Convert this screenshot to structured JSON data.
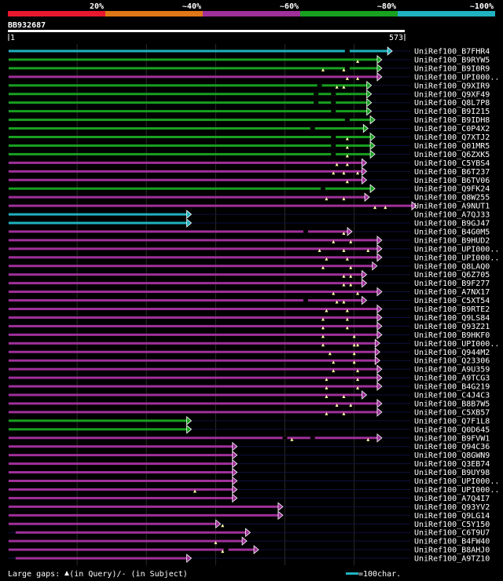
{
  "chart_data": {
    "type": "alignment-overview",
    "query": {
      "name": "BB932687",
      "start": 1,
      "end": 573
    },
    "identity_scale": [
      {
        "label": "20%",
        "color": "#e8182e"
      },
      {
        "label": "~40%",
        "color": "#e07818"
      },
      {
        "label": "~60%",
        "color": "#a0309a"
      },
      {
        "label": "~80%",
        "color": "#18a020"
      },
      {
        "label": "~100%",
        "color": "#20b2c0"
      }
    ],
    "hits": [
      {
        "name": "UniRef100_B7FHR4",
        "end": 555,
        "color": "#20b2c0",
        "query_gaps": [],
        "subject_gaps": [
          490
        ]
      },
      {
        "name": "UniRef100_B9RYW5",
        "end": 540,
        "color": "#18a020",
        "query_gaps": [
          505
        ],
        "subject_gaps": []
      },
      {
        "name": "UniRef100_B9I0R9",
        "end": 540,
        "color": "#18a020",
        "query_gaps": [
          455,
          485
        ],
        "subject_gaps": [
          490
        ]
      },
      {
        "name": "UniRef100_UPI000..",
        "end": 540,
        "color": "#a0309a",
        "query_gaps": [
          490,
          505
        ],
        "subject_gaps": []
      },
      {
        "name": "UniRef100_Q9XIR9",
        "end": 525,
        "color": "#18a020",
        "query_gaps": [
          475,
          485
        ],
        "subject_gaps": [
          450
        ]
      },
      {
        "name": "UniRef100_Q9XF49",
        "end": 525,
        "color": "#18a020",
        "query_gaps": [],
        "subject_gaps": [
          445,
          470
        ]
      },
      {
        "name": "UniRef100_Q8L7P8",
        "end": 525,
        "color": "#18a020",
        "query_gaps": [],
        "subject_gaps": [
          445,
          470
        ]
      },
      {
        "name": "UniRef100_B9I215",
        "end": 525,
        "color": "#18a020",
        "query_gaps": [],
        "subject_gaps": [
          470
        ]
      },
      {
        "name": "UniRef100_B9IDH8",
        "end": 530,
        "color": "#18a020",
        "query_gaps": [],
        "subject_gaps": [
          490
        ]
      },
      {
        "name": "UniRef100_C0P4X2",
        "end": 520,
        "color": "#18a020",
        "query_gaps": [],
        "subject_gaps": [
          440
        ]
      },
      {
        "name": "UniRef100_Q7XTJ2",
        "end": 530,
        "color": "#18a020",
        "query_gaps": [
          490
        ],
        "subject_gaps": [
          470
        ]
      },
      {
        "name": "UniRef100_Q01MR5",
        "end": 530,
        "color": "#18a020",
        "query_gaps": [
          490
        ],
        "subject_gaps": [
          470
        ]
      },
      {
        "name": "UniRef100_Q6ZXK5",
        "end": 530,
        "color": "#18a020",
        "query_gaps": [
          490
        ],
        "subject_gaps": [
          470
        ]
      },
      {
        "name": "UniRef100_C5YBS4",
        "end": 518,
        "color": "#a0309a",
        "query_gaps": [
          475,
          490
        ],
        "subject_gaps": []
      },
      {
        "name": "UniRef100_B6T237",
        "end": 518,
        "color": "#a0309a",
        "query_gaps": [
          470,
          485,
          505
        ],
        "subject_gaps": []
      },
      {
        "name": "UniRef100_B6TV06",
        "end": 518,
        "color": "#a0309a",
        "query_gaps": [
          490
        ],
        "subject_gaps": []
      },
      {
        "name": "UniRef100_Q9FK24",
        "end": 530,
        "color": "#18a020",
        "query_gaps": [],
        "subject_gaps": [
          455
        ]
      },
      {
        "name": "UniRef100_Q8W255",
        "end": 522,
        "color": "#a0309a",
        "query_gaps": [
          460,
          485
        ],
        "subject_gaps": []
      },
      {
        "name": "UniRef100_A9NUT1",
        "end": 590,
        "color": "#a0309a",
        "query_gaps": [
          530,
          545
        ],
        "subject_gaps": []
      },
      {
        "name": "UniRef100_A7QJ33",
        "end": 265,
        "color": "#20b2c0",
        "query_gaps": [],
        "subject_gaps": []
      },
      {
        "name": "UniRef100_B9GJ47",
        "end": 265,
        "color": "#20b2c0",
        "query_gaps": [],
        "subject_gaps": []
      },
      {
        "name": "UniRef100_B4G0M5",
        "end": 497,
        "color": "#a0309a",
        "query_gaps": [
          485
        ],
        "subject_gaps": [
          430
        ]
      },
      {
        "name": "UniRef100_B9HUD2",
        "end": 540,
        "color": "#a0309a",
        "query_gaps": [
          470,
          495
        ],
        "subject_gaps": []
      },
      {
        "name": "UniRef100_UPI000..",
        "end": 540,
        "color": "#a0309a",
        "query_gaps": [
          450,
          485,
          520
        ],
        "subject_gaps": []
      },
      {
        "name": "UniRef100_UPI000..",
        "end": 540,
        "color": "#a0309a",
        "query_gaps": [
          460,
          490
        ],
        "subject_gaps": []
      },
      {
        "name": "UniRef100_Q8LAQ0",
        "end": 533,
        "color": "#a0309a",
        "query_gaps": [
          455,
          495
        ],
        "subject_gaps": []
      },
      {
        "name": "UniRef100_Q6Z705",
        "end": 518,
        "color": "#a0309a",
        "query_gaps": [
          485,
          495
        ],
        "subject_gaps": []
      },
      {
        "name": "UniRef100_B9F277",
        "end": 518,
        "color": "#a0309a",
        "query_gaps": [
          485,
          495
        ],
        "subject_gaps": []
      },
      {
        "name": "UniRef100_A7NX17",
        "end": 540,
        "color": "#a0309a",
        "query_gaps": [
          470,
          505
        ],
        "subject_gaps": []
      },
      {
        "name": "UniRef100_C5XT54",
        "end": 518,
        "color": "#a0309a",
        "query_gaps": [
          475,
          485
        ],
        "subject_gaps": [
          430
        ]
      },
      {
        "name": "UniRef100_B9RTE2",
        "end": 540,
        "color": "#a0309a",
        "query_gaps": [
          460,
          490
        ],
        "subject_gaps": []
      },
      {
        "name": "UniRef100_Q9LS84",
        "end": 540,
        "color": "#a0309a",
        "query_gaps": [
          455,
          490
        ],
        "subject_gaps": []
      },
      {
        "name": "UniRef100_Q93Z21",
        "end": 540,
        "color": "#a0309a",
        "query_gaps": [
          455,
          490
        ],
        "subject_gaps": []
      },
      {
        "name": "UniRef100_B9HKF0",
        "end": 540,
        "color": "#a0309a",
        "query_gaps": [
          455,
          500
        ],
        "subject_gaps": []
      },
      {
        "name": "UniRef100_UPI000..",
        "end": 537,
        "color": "#a0309a",
        "query_gaps": [
          455,
          500,
          505
        ],
        "subject_gaps": []
      },
      {
        "name": "UniRef100_Q944M2",
        "end": 537,
        "color": "#a0309a",
        "query_gaps": [
          465,
          500
        ],
        "subject_gaps": []
      },
      {
        "name": "UniRef100_Q23306",
        "end": 537,
        "color": "#a0309a",
        "query_gaps": [
          470,
          500
        ],
        "subject_gaps": []
      },
      {
        "name": "UniRef100_A9U359",
        "end": 540,
        "color": "#a0309a",
        "query_gaps": [
          470,
          505
        ],
        "subject_gaps": []
      },
      {
        "name": "UniRef100_A9TCG3",
        "end": 540,
        "color": "#a0309a",
        "query_gaps": [
          460,
          505
        ],
        "subject_gaps": []
      },
      {
        "name": "UniRef100_B4G219",
        "end": 540,
        "color": "#a0309a",
        "query_gaps": [
          460,
          505
        ],
        "subject_gaps": []
      },
      {
        "name": "UniRef100_C4J4C3",
        "end": 518,
        "color": "#a0309a",
        "query_gaps": [
          460,
          485
        ],
        "subject_gaps": []
      },
      {
        "name": "UniRef100_B8B7W5",
        "end": 540,
        "color": "#a0309a",
        "query_gaps": [
          475,
          495
        ],
        "subject_gaps": []
      },
      {
        "name": "UniRef100_C5XB57",
        "end": 540,
        "color": "#a0309a",
        "query_gaps": [
          460,
          485
        ],
        "subject_gaps": []
      },
      {
        "name": "UniRef100_Q7F1L8",
        "end": 265,
        "color": "#18a020",
        "query_gaps": [],
        "subject_gaps": []
      },
      {
        "name": "UniRef100_Q0D645",
        "end": 265,
        "color": "#18a020",
        "query_gaps": [],
        "subject_gaps": []
      },
      {
        "name": "UniRef100_B9FVW1",
        "end": 540,
        "color": "#a0309a",
        "query_gaps": [
          410,
          520
        ],
        "subject_gaps": [
          400,
          440
        ]
      },
      {
        "name": "UniRef100_Q94C36",
        "end": 331,
        "color": "#a0309a",
        "query_gaps": [],
        "subject_gaps": []
      },
      {
        "name": "UniRef100_Q8GWN9",
        "end": 331,
        "color": "#a0309a",
        "query_gaps": [],
        "subject_gaps": []
      },
      {
        "name": "UniRef100_Q3EB74",
        "end": 331,
        "color": "#a0309a",
        "query_gaps": [],
        "subject_gaps": []
      },
      {
        "name": "UniRef100_B9UY98",
        "end": 331,
        "color": "#a0309a",
        "query_gaps": [],
        "subject_gaps": []
      },
      {
        "name": "UniRef100_UPI000..",
        "end": 331,
        "color": "#a0309a",
        "query_gaps": [],
        "subject_gaps": []
      },
      {
        "name": "UniRef100_UPI000..",
        "end": 331,
        "color": "#a0309a",
        "query_gaps": [
          270
        ],
        "subject_gaps": []
      },
      {
        "name": "UniRef100_A7Q4I7",
        "end": 331,
        "color": "#a0309a",
        "query_gaps": [],
        "subject_gaps": []
      },
      {
        "name": "UniRef100_Q93YV2",
        "end": 397,
        "color": "#a0309a",
        "query_gaps": [],
        "subject_gaps": []
      },
      {
        "name": "UniRef100_Q9LG14",
        "end": 397,
        "color": "#a0309a",
        "query_gaps": [],
        "subject_gaps": []
      },
      {
        "name": "UniRef100_C5Y150",
        "end": 307,
        "color": "#a0309a",
        "query_gaps": [
          310
        ],
        "subject_gaps": []
      },
      {
        "name": "UniRef100_C6T9U7",
        "end": 350,
        "start": 10,
        "color": "#a0309a",
        "query_gaps": [],
        "subject_gaps": []
      },
      {
        "name": "UniRef100_B4FW40",
        "end": 345,
        "color": "#a0309a",
        "query_gaps": [
          300
        ],
        "subject_gaps": []
      },
      {
        "name": "UniRef100_B8AHJ0",
        "end": 362,
        "color": "#a0309a",
        "query_gaps": [
          310
        ],
        "subject_gaps": [
          315
        ]
      },
      {
        "name": "UniRef100_A9TZ10",
        "end": 265,
        "start": 10,
        "color": "#a0309a",
        "query_gaps": [],
        "subject_gaps": []
      }
    ]
  },
  "legend": {
    "large_gaps": "Large gaps:",
    "in_query": "(in Query)/",
    "in_subject": "- (in Subject)",
    "scale": "=100char."
  }
}
